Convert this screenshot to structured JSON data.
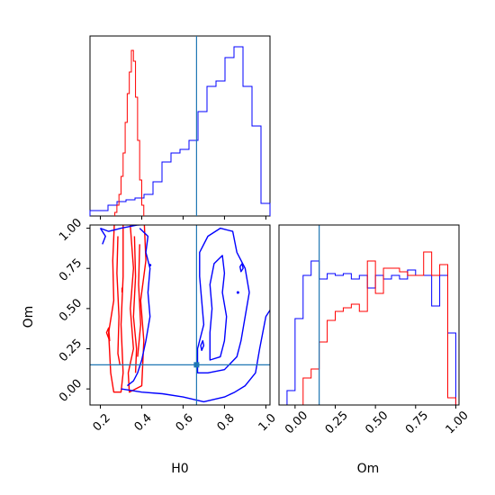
{
  "chart_data": {
    "type": "corner",
    "parameters": [
      "H0",
      "Om"
    ],
    "truth": {
      "H0": 0.665,
      "Om": 0.15
    },
    "colors": {
      "red": "#ff0000",
      "blue": "#0000ff",
      "truth": "#1f77b4"
    },
    "h0_range": [
      0.15,
      1.02
    ],
    "om_range": [
      -0.1,
      1.02
    ],
    "h0_ticks": [
      "0.2",
      "0.4",
      "0.6",
      "0.8",
      "1.0"
    ],
    "h0_tick_values": [
      0.2,
      0.4,
      0.6,
      0.8,
      1.0
    ],
    "om_ticks": [
      "0.00",
      "0.25",
      "0.50",
      "0.75",
      "1.00"
    ],
    "om_tick_values": [
      0.0,
      0.25,
      0.5,
      0.75,
      1.0
    ],
    "xlabel_h0": "H0",
    "xlabel_om": "Om",
    "ylabel_om": "Om",
    "hist_h0": {
      "bins": [
        0.15,
        0.1935,
        0.237,
        0.2805,
        0.324,
        0.3675,
        0.411,
        0.4545,
        0.498,
        0.5415,
        0.585,
        0.6285,
        0.672,
        0.7155,
        0.759,
        0.8025,
        0.846,
        0.8895,
        0.933,
        0.9765,
        1.02
      ],
      "blue": [
        0.03,
        0.03,
        0.06,
        0.08,
        0.09,
        0.1,
        0.12,
        0.19,
        0.3,
        0.35,
        0.37,
        0.42,
        0.58,
        0.72,
        0.75,
        0.88,
        0.94,
        0.72,
        0.5,
        0.07
      ],
      "red_bins": [
        0.27,
        0.28,
        0.29,
        0.3,
        0.31,
        0.32,
        0.33,
        0.34,
        0.35,
        0.36,
        0.37,
        0.38,
        0.39,
        0.4,
        0.41
      ],
      "red": [
        0.02,
        0.06,
        0.12,
        0.22,
        0.35,
        0.52,
        0.68,
        0.8,
        0.92,
        0.86,
        0.66,
        0.42,
        0.2,
        0.06
      ]
    },
    "hist_om": {
      "bins": [
        -0.05,
        0.0,
        0.05,
        0.1,
        0.15,
        0.2,
        0.25,
        0.3,
        0.35,
        0.4,
        0.45,
        0.5,
        0.55,
        0.6,
        0.65,
        0.7,
        0.75,
        0.8,
        0.85,
        0.9,
        0.95,
        1.0
      ],
      "blue": [
        0.08,
        0.48,
        0.72,
        0.8,
        0.7,
        0.73,
        0.72,
        0.73,
        0.7,
        0.72,
        0.65,
        0.72,
        0.7,
        0.72,
        0.7,
        0.75,
        0.72,
        0.72,
        0.55,
        0.72,
        0.4
      ],
      "red": [
        0.0,
        0.0,
        0.15,
        0.2,
        0.35,
        0.47,
        0.52,
        0.54,
        0.56,
        0.52,
        0.8,
        0.62,
        0.76,
        0.76,
        0.74,
        0.72,
        0.72,
        0.85,
        0.72,
        0.78,
        0.04
      ]
    }
  }
}
